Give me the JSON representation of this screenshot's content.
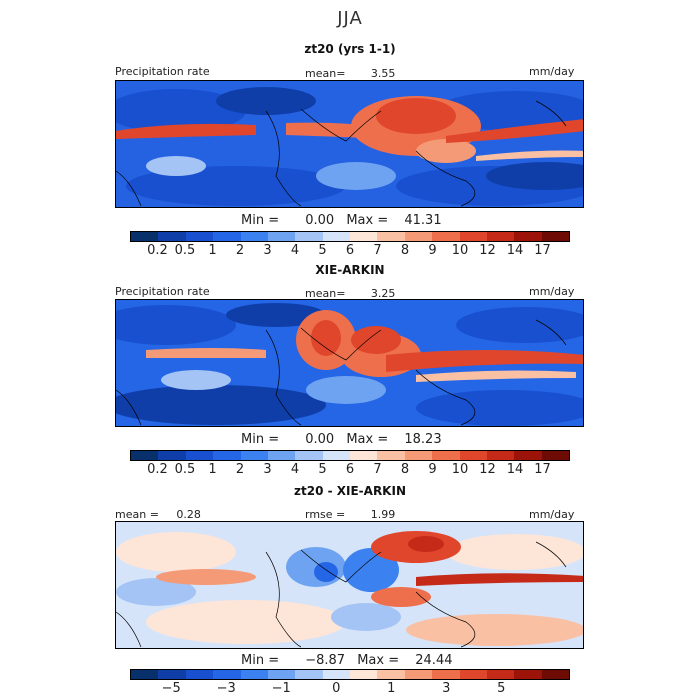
{
  "title": "JJA",
  "colors": {
    "abs_scale": [
      "#08306b",
      "#0f3ea8",
      "#1850cf",
      "#2466e6",
      "#3b82f0",
      "#6ea3f2",
      "#a3c4f5",
      "#d6e4fa",
      "#fde5d8",
      "#f9c0a3",
      "#f49a76",
      "#ee6f4c",
      "#e0462b",
      "#c42a17",
      "#9c1309",
      "#6e0b05"
    ],
    "diff_scale": [
      "#08306b",
      "#0f3ea8",
      "#1850cf",
      "#2466e6",
      "#3b82f0",
      "#6ea3f2",
      "#a3c4f5",
      "#d6e4fa",
      "#fde5d8",
      "#f9c0a3",
      "#f49a76",
      "#ee6f4c",
      "#e0462b",
      "#c42a17",
      "#9c1309",
      "#6e0b05"
    ]
  },
  "panels": [
    {
      "name": "zt20 (yrs 1-1)",
      "left_label": "Precipitation rate",
      "mid_label": "mean=",
      "mid_value": "3.55",
      "units": "mm/day",
      "min_label": "Min =",
      "min_value": "0.00",
      "max_label": "Max =",
      "max_value": "41.31"
    },
    {
      "name": "XIE-ARKIN",
      "left_label": "Precipitation rate",
      "mid_label": "mean=",
      "mid_value": "3.25",
      "units": "mm/day",
      "min_label": "Min =",
      "min_value": "0.00",
      "max_label": "Max =",
      "max_value": "18.23"
    },
    {
      "name": "zt20 - XIE-ARKIN",
      "left_label": "mean =",
      "left_value": "0.28",
      "mid_label": "rmse =",
      "mid_value": "1.99",
      "units": "mm/day",
      "min_label": "Min =",
      "min_value": "−8.87",
      "max_label": "Max =",
      "max_value": "24.44"
    }
  ],
  "abs_ticks": [
    "0.2",
    "0.5",
    "1",
    "2",
    "3",
    "4",
    "5",
    "6",
    "7",
    "8",
    "9",
    "10",
    "12",
    "14",
    "17"
  ],
  "diff_ticks": [
    "−5",
    "−3",
    "−1",
    "0",
    "1",
    "3",
    "5"
  ],
  "chart_data": [
    {
      "type": "heatmap",
      "title": "zt20 (yrs 1-1)",
      "ylabel": "Precipitation rate",
      "units": "mm/day",
      "mean": 3.55,
      "min": 0.0,
      "max": 41.31,
      "contour_levels": [
        0.2,
        0.5,
        1,
        2,
        3,
        4,
        5,
        6,
        7,
        8,
        9,
        10,
        12,
        14,
        17
      ]
    },
    {
      "type": "heatmap",
      "title": "XIE-ARKIN",
      "ylabel": "Precipitation rate",
      "units": "mm/day",
      "mean": 3.25,
      "min": 0.0,
      "max": 18.23,
      "contour_levels": [
        0.2,
        0.5,
        1,
        2,
        3,
        4,
        5,
        6,
        7,
        8,
        9,
        10,
        12,
        14,
        17
      ]
    },
    {
      "type": "heatmap",
      "title": "zt20 - XIE-ARKIN",
      "units": "mm/day",
      "mean": 0.28,
      "rmse": 1.99,
      "min": -8.87,
      "max": 24.44,
      "contour_levels": [
        -5,
        -3,
        -1,
        0,
        1,
        3,
        5
      ]
    }
  ]
}
